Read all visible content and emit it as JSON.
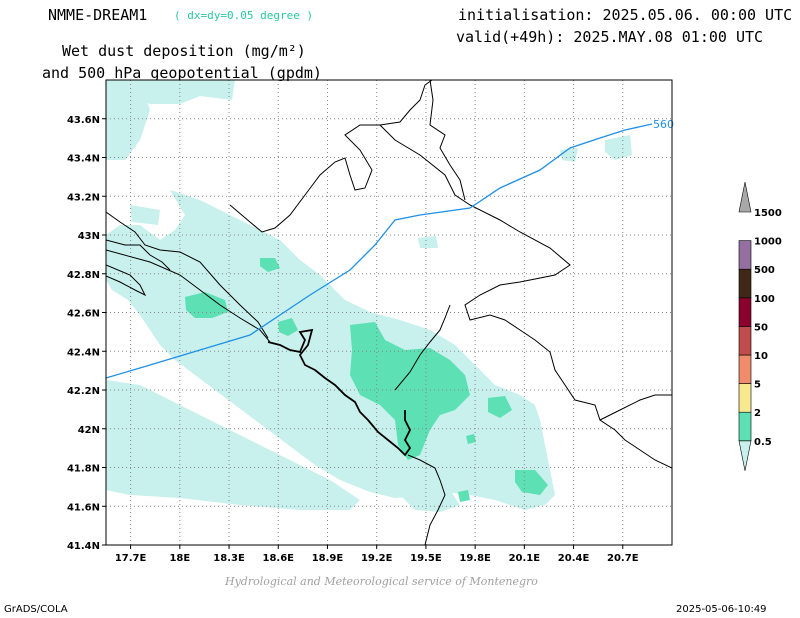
{
  "header": {
    "model": "NMME-DREAM1",
    "resolution": "( dx=dy=0.05 degree )",
    "variable": "Wet dust deposition (mg/m²)",
    "variable2": "and 500 hPa geopotential (gpdm)",
    "init": "initialisation: 2025.05.06. 00:00 UTC",
    "valid": "valid(+49h): 2025.MAY.08 01:00 UTC"
  },
  "credit": "Hydrological and Meteorological service of Montenegro",
  "footer": {
    "left": "GrADS/COLA",
    "right": "2025-05-06-10:49"
  },
  "chart_data": {
    "type": "heatmap",
    "x_ticks": [
      "17.7E",
      "18E",
      "18.3E",
      "18.6E",
      "18.9E",
      "19.2E",
      "19.5E",
      "19.8E",
      "20.1E",
      "20.4E",
      "20.7E"
    ],
    "y_ticks": [
      "43.6N",
      "43.4N",
      "43.2N",
      "43N",
      "42.8N",
      "42.6N",
      "42.4N",
      "42.2N",
      "42N",
      "41.8N",
      "41.6N",
      "41.4N"
    ],
    "xlim": [
      17.55,
      21.0
    ],
    "ylim": [
      41.4,
      43.8
    ],
    "contour_label": "560",
    "legend": {
      "levels": [
        "0.5",
        "2",
        "5",
        "10",
        "50",
        "100",
        "500",
        "1000",
        "1500"
      ],
      "colors": [
        "#c8f0ec",
        "#5ce0b4",
        "#f8e890",
        "#f08c6c",
        "#c04c4c",
        "#8c0030",
        "#402818",
        "#9470a0",
        "#a8a8a8"
      ]
    }
  }
}
